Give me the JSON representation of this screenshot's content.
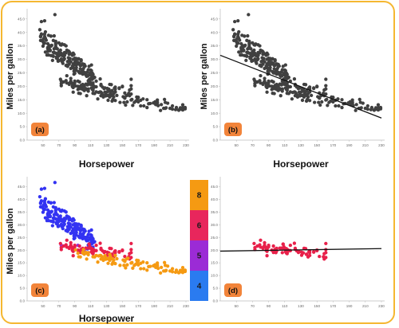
{
  "chart_data": [
    {
      "type": "scatter",
      "panel_label": "(a)",
      "xlabel": "Horsepower",
      "ylabel": "Miles per gallon",
      "xlim": [
        30,
        230
      ],
      "ylim": [
        0,
        47
      ],
      "x_ticks": [
        "50",
        "70",
        "90",
        "110",
        "130",
        "150",
        "170",
        "190",
        "210",
        "230"
      ],
      "y_ticks": [
        "0.0",
        "5.0",
        "10.0",
        "15.0",
        "20.0",
        "25.0",
        "30.0",
        "35.0",
        "40.0",
        "45.0"
      ],
      "point_color": "#404040",
      "fit_line": null
    },
    {
      "type": "scatter",
      "panel_label": "(b)",
      "xlabel": "Horsepower",
      "ylabel": "Miles per gallon",
      "xlim": [
        30,
        230
      ],
      "ylim": [
        0,
        47
      ],
      "x_ticks": [
        "50",
        "70",
        "90",
        "110",
        "130",
        "150",
        "170",
        "190",
        "210",
        "230"
      ],
      "y_ticks": [
        "0.0",
        "5.0",
        "10.0",
        "15.0",
        "20.0",
        "25.0",
        "30.0",
        "35.0",
        "40.0",
        "45.0"
      ],
      "point_color": "#404040",
      "fit_line": {
        "x": [
          30,
          230
        ],
        "y": [
          31.5,
          8.2
        ]
      }
    },
    {
      "type": "scatter",
      "panel_label": "(c)",
      "xlabel": "Horsepower",
      "ylabel": "Miles per gallon",
      "xlim": [
        30,
        230
      ],
      "ylim": [
        0,
        47
      ],
      "x_ticks": [
        "50",
        "70",
        "90",
        "110",
        "130",
        "150",
        "170",
        "190",
        "210",
        "230"
      ],
      "y_ticks": [
        "0.0",
        "5.0",
        "10.0",
        "15.0",
        "20.0",
        "25.0",
        "30.0",
        "35.0",
        "40.0",
        "45.0"
      ],
      "colored_by_cylinders": true,
      "fit_line": null
    },
    {
      "type": "scatter",
      "panel_label": "(d)",
      "xlabel": "",
      "ylabel": "",
      "xlim": [
        30,
        230
      ],
      "ylim": [
        0,
        47
      ],
      "x_ticks": [
        "50",
        "70",
        "90",
        "110",
        "130",
        "150",
        "170",
        "190",
        "210",
        "230"
      ],
      "y_ticks": [
        "0.0",
        "5.0",
        "10.0",
        "15.0",
        "20.0",
        "25.0",
        "30.0",
        "35.0",
        "40.0",
        "45.0"
      ],
      "point_color": "#e8204a",
      "filter_cylinders": "6",
      "fit_line": {
        "x": [
          30,
          230
        ],
        "y": [
          19.6,
          20.6
        ]
      }
    }
  ],
  "legend": {
    "title": "",
    "items": [
      {
        "label": "8",
        "color": "#f59a12"
      },
      {
        "label": "6",
        "color": "#e8265c"
      },
      {
        "label": "5",
        "color": "#9b2bd6"
      },
      {
        "label": "4",
        "color": "#2a7bf0"
      }
    ]
  },
  "colors": {
    "frame": "#f5b731",
    "badge": "#f2843a",
    "dark_points": "#404040",
    "fit_line": "#111111",
    "cyl4": "#3333f2",
    "cyl5": "#9b2bd6",
    "cyl6": "#e8204a",
    "cyl8": "#f59a12"
  }
}
